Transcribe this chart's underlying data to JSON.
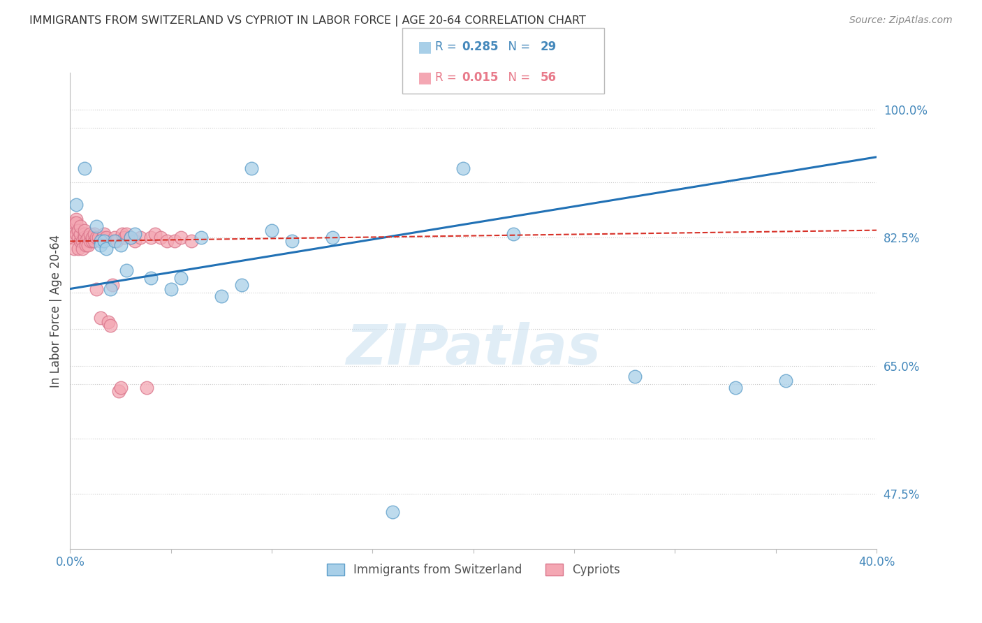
{
  "title": "IMMIGRANTS FROM SWITZERLAND VS CYPRIOT IN LABOR FORCE | AGE 20-64 CORRELATION CHART",
  "source": "Source: ZipAtlas.com",
  "ylabel": "In Labor Force | Age 20-64",
  "xlim": [
    0.0,
    0.4
  ],
  "ylim": [
    0.4,
    1.05
  ],
  "xtick_pos": [
    0.0,
    0.05,
    0.1,
    0.15,
    0.2,
    0.25,
    0.3,
    0.35,
    0.4
  ],
  "xticklabels": [
    "0.0%",
    "",
    "",
    "",
    "",
    "",
    "",
    "",
    "40.0%"
  ],
  "ytick_right_pos": [
    0.475,
    0.65,
    0.825,
    1.0
  ],
  "ytick_right_labels": [
    "47.5%",
    "65.0%",
    "82.5%",
    "100.0%"
  ],
  "ytick_grid_pos": [
    0.475,
    0.55,
    0.625,
    0.65,
    0.7,
    0.75,
    0.825,
    0.9,
    0.975,
    1.0
  ],
  "legend_r1": "R = 0.285",
  "legend_n1": "N = 29",
  "legend_r2": "R = 0.015",
  "legend_n2": "N = 56",
  "blue_face": "#a8cfe8",
  "blue_edge": "#5b9dc9",
  "pink_face": "#f4a7b3",
  "pink_edge": "#d9748a",
  "blue_line_color": "#2171b5",
  "pink_line_color": "#d73027",
  "watermark": "ZIPatlas",
  "swiss_x": [
    0.003,
    0.007,
    0.013,
    0.015,
    0.015,
    0.017,
    0.018,
    0.02,
    0.022,
    0.025,
    0.028,
    0.03,
    0.032,
    0.04,
    0.05,
    0.055,
    0.065,
    0.075,
    0.085,
    0.09,
    0.1,
    0.11,
    0.13,
    0.16,
    0.195,
    0.22,
    0.28,
    0.33,
    0.355
  ],
  "swiss_y": [
    0.87,
    0.92,
    0.84,
    0.82,
    0.815,
    0.82,
    0.81,
    0.755,
    0.82,
    0.815,
    0.78,
    0.825,
    0.83,
    0.77,
    0.755,
    0.77,
    0.825,
    0.745,
    0.76,
    0.92,
    0.835,
    0.82,
    0.825,
    0.45,
    0.92,
    0.83,
    0.635,
    0.62,
    0.63
  ],
  "cypriot_x": [
    0.001,
    0.001,
    0.002,
    0.002,
    0.003,
    0.003,
    0.003,
    0.004,
    0.004,
    0.004,
    0.005,
    0.005,
    0.005,
    0.006,
    0.006,
    0.007,
    0.007,
    0.007,
    0.008,
    0.008,
    0.009,
    0.009,
    0.01,
    0.01,
    0.011,
    0.011,
    0.012,
    0.012,
    0.013,
    0.013,
    0.014,
    0.015,
    0.016,
    0.017,
    0.018,
    0.019,
    0.02,
    0.021,
    0.022,
    0.023,
    0.024,
    0.025,
    0.026,
    0.027,
    0.028,
    0.03,
    0.032,
    0.035,
    0.038,
    0.04,
    0.042,
    0.045,
    0.048,
    0.052,
    0.055,
    0.06
  ],
  "cypriot_y": [
    0.825,
    0.84,
    0.81,
    0.845,
    0.85,
    0.83,
    0.845,
    0.81,
    0.825,
    0.835,
    0.82,
    0.83,
    0.84,
    0.82,
    0.81,
    0.83,
    0.825,
    0.835,
    0.82,
    0.815,
    0.825,
    0.815,
    0.82,
    0.83,
    0.82,
    0.825,
    0.82,
    0.83,
    0.755,
    0.825,
    0.825,
    0.715,
    0.825,
    0.83,
    0.825,
    0.71,
    0.705,
    0.76,
    0.825,
    0.82,
    0.615,
    0.62,
    0.83,
    0.825,
    0.83,
    0.825,
    0.82,
    0.825,
    0.62,
    0.825,
    0.83,
    0.825,
    0.82,
    0.82,
    0.825,
    0.82
  ]
}
